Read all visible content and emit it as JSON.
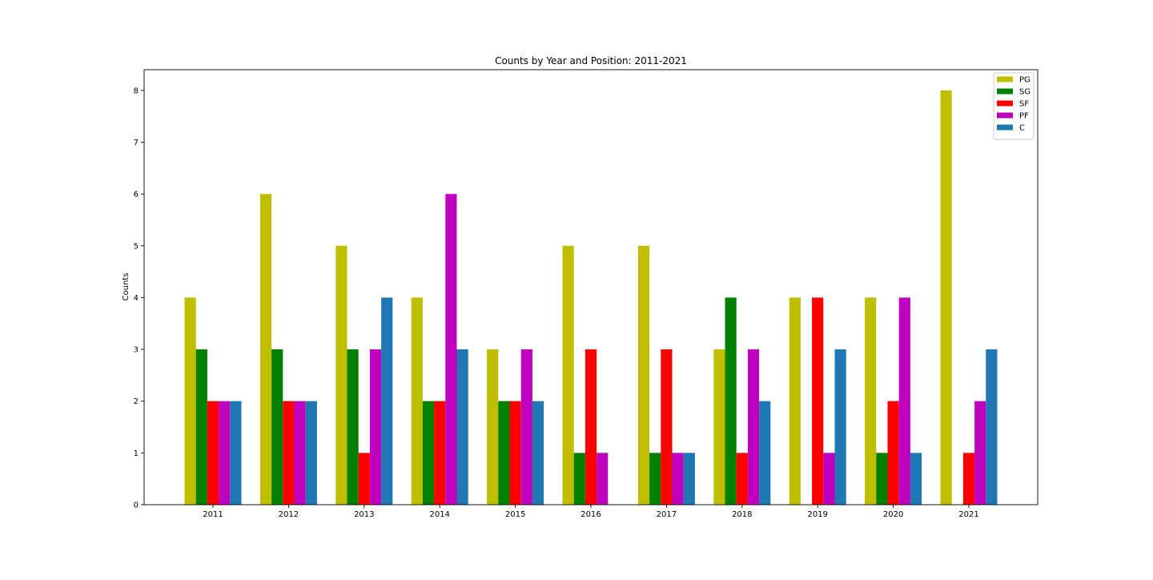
{
  "chart_data": {
    "type": "bar",
    "title": "Counts by Year and Position: 2011-2021",
    "xlabel": "",
    "ylabel": "Counts",
    "categories": [
      "2011",
      "2012",
      "2013",
      "2014",
      "2015",
      "2016",
      "2017",
      "2018",
      "2019",
      "2020",
      "2021"
    ],
    "series": [
      {
        "name": "PG",
        "color": "#bfbf00",
        "values": [
          4,
          6,
          5,
          4,
          3,
          5,
          5,
          3,
          4,
          4,
          8
        ]
      },
      {
        "name": "SG",
        "color": "#008000",
        "values": [
          3,
          3,
          3,
          2,
          2,
          1,
          1,
          4,
          0,
          1,
          0
        ]
      },
      {
        "name": "SF",
        "color": "#ff0000",
        "values": [
          2,
          2,
          1,
          2,
          2,
          3,
          3,
          1,
          4,
          2,
          1
        ]
      },
      {
        "name": "PF",
        "color": "#bf00bf",
        "values": [
          2,
          2,
          3,
          6,
          3,
          1,
          1,
          3,
          1,
          4,
          2
        ]
      },
      {
        "name": "C",
        "color": "#1f77b4",
        "values": [
          2,
          2,
          4,
          3,
          2,
          0,
          1,
          2,
          3,
          1,
          3
        ]
      }
    ],
    "ylim": [
      0,
      8.4
    ],
    "yticks": [
      "0",
      "1",
      "2",
      "3",
      "4",
      "5",
      "6",
      "7",
      "8"
    ],
    "grid": false,
    "legend_position": "top-right"
  }
}
